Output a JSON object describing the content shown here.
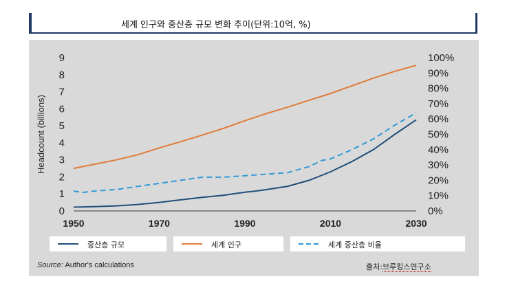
{
  "title": "세계 인구와 중산층 규모 변화 추이(단위:10억, %)",
  "source_prefix": "Source:",
  "source_text": " Author's calculations",
  "credit_prefix": "출처:",
  "credit_name": "브루킹스연구소",
  "chart_data": {
    "type": "line",
    "ylabel": "Headcount (billions)",
    "y_ticks": [
      "0",
      "1",
      "2",
      "3",
      "4",
      "5",
      "6",
      "7",
      "8",
      "9"
    ],
    "y2_ticks": [
      "0%",
      "10%",
      "20%",
      "30%",
      "40%",
      "50%",
      "60%",
      "70%",
      "80%",
      "90%",
      "100%"
    ],
    "x_ticks": [
      "1950",
      "1970",
      "1990",
      "2010",
      "2030"
    ],
    "xlim": [
      1950,
      2030
    ],
    "ylim": [
      0,
      9
    ],
    "y2lim": [
      0,
      100
    ],
    "series": [
      {
        "name": "중산층 규모",
        "axis": "left",
        "color": "#1f4e79",
        "dash": "",
        "x": [
          1950,
          1955,
          1960,
          1965,
          1970,
          1975,
          1980,
          1985,
          1990,
          1992,
          1995,
          2000,
          2005,
          2008,
          2010,
          2015,
          2020,
          2025,
          2030
        ],
        "values": [
          0.22,
          0.25,
          0.3,
          0.38,
          0.5,
          0.65,
          0.8,
          0.92,
          1.1,
          1.15,
          1.25,
          1.45,
          1.8,
          2.1,
          2.3,
          2.9,
          3.6,
          4.5,
          5.35
        ]
      },
      {
        "name": "세계 인구",
        "axis": "left",
        "color": "#e07b39",
        "dash": "",
        "x": [
          1950,
          1955,
          1960,
          1965,
          1970,
          1975,
          1980,
          1985,
          1990,
          1995,
          2000,
          2005,
          2010,
          2015,
          2020,
          2025,
          2030
        ],
        "values": [
          2.5,
          2.75,
          3.0,
          3.3,
          3.7,
          4.07,
          4.45,
          4.85,
          5.3,
          5.72,
          6.1,
          6.5,
          6.9,
          7.35,
          7.8,
          8.2,
          8.55
        ]
      },
      {
        "name": "세계 중산층 비율",
        "axis": "right",
        "color": "#2e9ad6",
        "dash": "8,5",
        "x": [
          1950,
          1952,
          1955,
          1960,
          1965,
          1970,
          1975,
          1980,
          1985,
          1990,
          1995,
          2000,
          2005,
          2008,
          2010,
          2015,
          2020,
          2025,
          2030
        ],
        "values": [
          13,
          12,
          13,
          14,
          16,
          18,
          20,
          22,
          22,
          23,
          24,
          25,
          29,
          33,
          34,
          40,
          47,
          56,
          64
        ]
      }
    ]
  }
}
